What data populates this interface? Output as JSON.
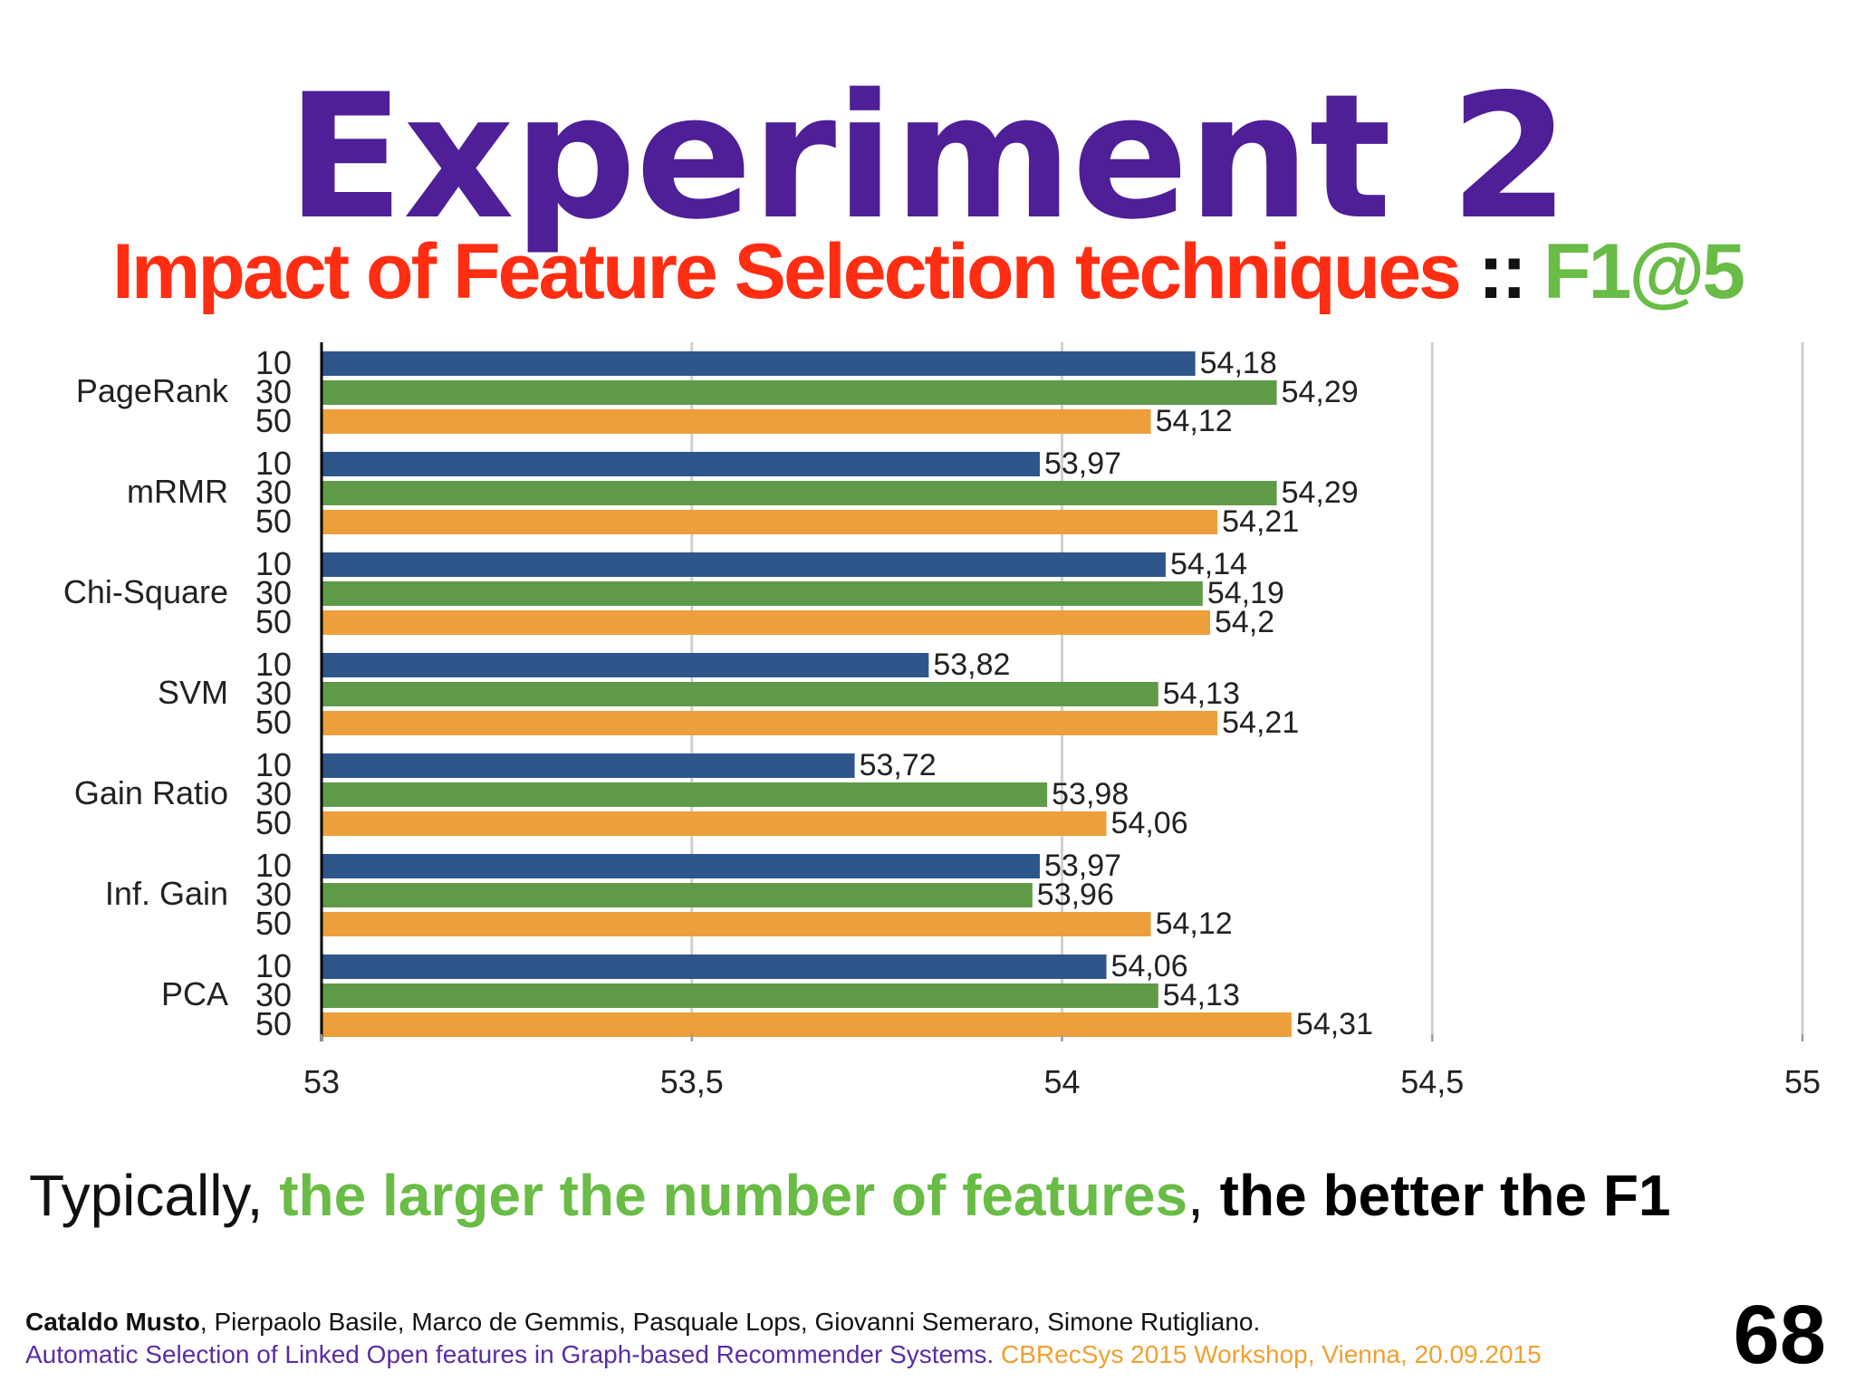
{
  "slide": {
    "title": "Experiment 2",
    "subtitle_part1": "Impact of Feature Selection techniques",
    "subtitle_sep": " :: ",
    "subtitle_part2": "F1@5",
    "caption_part1": "Typically, ",
    "caption_part2": "the larger the number of features",
    "caption_part3": ", ",
    "caption_part4": "the better the F1",
    "authors_bold": "Cataldo Musto",
    "authors_rest": ", Pierpaolo Basile, Marco de Gemmis, Pasquale Lops, Giovanni Semeraro, Simone Rutigliano.",
    "paper_title": "Automatic Selection of Linked Open features in Graph-based Recommender Systems.",
    "venue": " CBRecSys 2015 Workshop, Vienna, 20.09.2015",
    "page_number": "68"
  },
  "chart_data": {
    "type": "bar",
    "orientation": "horizontal",
    "categories": [
      "PageRank",
      "mRMR",
      "Chi-Square",
      "SVM",
      "Gain Ratio",
      "Inf. Gain",
      "PCA"
    ],
    "series": [
      {
        "name": "10",
        "color": "#2e568a",
        "values": [
          54.18,
          53.97,
          54.14,
          53.82,
          53.72,
          53.97,
          54.06
        ],
        "labels": [
          "54,18",
          "53,97",
          "54,14",
          "53,82",
          "53,72",
          "53,97",
          "54,06"
        ]
      },
      {
        "name": "30",
        "color": "#5f9a48",
        "values": [
          54.29,
          54.29,
          54.19,
          54.13,
          53.98,
          53.96,
          54.13
        ],
        "labels": [
          "54,29",
          "54,29",
          "54,19",
          "54,13",
          "53,98",
          "53,96",
          "54,13"
        ]
      },
      {
        "name": "50",
        "color": "#ec9f3a",
        "values": [
          54.12,
          54.21,
          54.2,
          54.21,
          54.06,
          54.12,
          54.31
        ],
        "labels": [
          "54,12",
          "54,21",
          "54,2",
          "54,21",
          "54,06",
          "54,12",
          "54,31"
        ]
      }
    ],
    "xlim": [
      53,
      55
    ],
    "xticks": [
      53,
      53.5,
      54,
      54.5,
      55
    ],
    "xtick_labels": [
      "53",
      "53,5",
      "54",
      "54,5",
      "55"
    ],
    "grid": true
  }
}
